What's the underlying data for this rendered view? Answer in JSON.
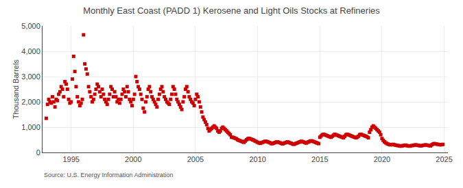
{
  "chart_data": {
    "type": "scatter",
    "title": "Monthly East Coast (PADD 1) Kerosene and Light Oils Stocks at Refineries",
    "ylabel": "Thousand Barrels",
    "source": "Source: U.S. Energy Information Administration",
    "color": "#cc0000",
    "marker": "square",
    "grid": true,
    "xlim": [
      1992.7,
      2025.3
    ],
    "xticks": [
      1995,
      2000,
      2005,
      2010,
      2015,
      2020,
      2025
    ],
    "ylim": [
      0,
      5000
    ],
    "yticks": [
      0,
      {
        "value": 1000,
        "label": "1,000"
      },
      {
        "value": 2000,
        "label": "2,000"
      },
      {
        "value": 3000,
        "label": "3,000"
      },
      {
        "value": 4000,
        "label": "4,000"
      },
      {
        "value": 5000,
        "label": "5,000"
      }
    ],
    "x": [
      1993.0,
      1993.1,
      1993.2,
      1993.3,
      1993.4,
      1993.5,
      1993.6,
      1993.7,
      1993.8,
      1993.9,
      1994.0,
      1994.1,
      1994.2,
      1994.3,
      1994.4,
      1994.5,
      1994.6,
      1994.7,
      1994.8,
      1994.9,
      1995.0,
      1995.1,
      1995.2,
      1995.3,
      1995.4,
      1995.5,
      1995.6,
      1995.7,
      1995.8,
      1995.9,
      1996.0,
      1996.1,
      1996.2,
      1996.3,
      1996.4,
      1996.5,
      1996.6,
      1996.7,
      1996.8,
      1996.9,
      1997.0,
      1997.1,
      1997.2,
      1997.3,
      1997.4,
      1997.5,
      1997.6,
      1997.7,
      1997.8,
      1997.9,
      1998.0,
      1998.1,
      1998.2,
      1998.3,
      1998.4,
      1998.5,
      1998.6,
      1998.7,
      1998.8,
      1998.9,
      1999.0,
      1999.1,
      1999.2,
      1999.3,
      1999.4,
      1999.5,
      1999.6,
      1999.7,
      1999.8,
      1999.9,
      2000.0,
      2000.1,
      2000.2,
      2000.3,
      2000.4,
      2000.5,
      2000.6,
      2000.7,
      2000.8,
      2000.9,
      2001.0,
      2001.1,
      2001.2,
      2001.3,
      2001.4,
      2001.5,
      2001.6,
      2001.7,
      2001.8,
      2001.9,
      2002.0,
      2002.1,
      2002.2,
      2002.3,
      2002.4,
      2002.5,
      2002.6,
      2002.7,
      2002.8,
      2002.9,
      2003.0,
      2003.1,
      2003.2,
      2003.3,
      2003.4,
      2003.5,
      2003.6,
      2003.7,
      2003.8,
      2003.9,
      2004.0,
      2004.1,
      2004.2,
      2004.3,
      2004.4,
      2004.5,
      2004.6,
      2004.7,
      2004.8,
      2004.9,
      2005.0,
      2005.1,
      2005.2,
      2005.3,
      2005.4,
      2005.5,
      2005.6,
      2005.7,
      2005.8,
      2005.9,
      2006.0,
      2006.1,
      2006.2,
      2006.3,
      2006.4,
      2006.5,
      2006.6,
      2006.7,
      2006.8,
      2006.9,
      2007.0,
      2007.1,
      2007.2,
      2007.3,
      2007.4,
      2007.5,
      2007.6,
      2007.7,
      2007.8,
      2007.9,
      2008.0,
      2008.1,
      2008.2,
      2008.3,
      2008.4,
      2008.5,
      2008.6,
      2008.7,
      2008.8,
      2008.9,
      2009.0,
      2009.1,
      2009.2,
      2009.3,
      2009.4,
      2009.5,
      2009.6,
      2009.7,
      2009.8,
      2009.9,
      2010.0,
      2010.1,
      2010.2,
      2010.3,
      2010.4,
      2010.5,
      2010.6,
      2010.7,
      2010.8,
      2010.9,
      2011.0,
      2011.1,
      2011.2,
      2011.3,
      2011.4,
      2011.5,
      2011.6,
      2011.7,
      2011.8,
      2011.9,
      2012.0,
      2012.1,
      2012.2,
      2012.3,
      2012.4,
      2012.5,
      2012.6,
      2012.7,
      2012.8,
      2012.9,
      2013.0,
      2013.1,
      2013.2,
      2013.3,
      2013.4,
      2013.5,
      2013.6,
      2013.7,
      2013.8,
      2013.9,
      2014.0,
      2014.1,
      2014.2,
      2014.3,
      2014.4,
      2014.5,
      2014.6,
      2014.7,
      2014.8,
      2014.9,
      2015.0,
      2015.1,
      2015.2,
      2015.3,
      2015.4,
      2015.5,
      2015.6,
      2015.7,
      2015.8,
      2015.9,
      2016.0,
      2016.1,
      2016.2,
      2016.3,
      2016.4,
      2016.5,
      2016.6,
      2016.7,
      2016.8,
      2016.9,
      2017.0,
      2017.1,
      2017.2,
      2017.3,
      2017.4,
      2017.5,
      2017.6,
      2017.7,
      2017.8,
      2017.9,
      2018.0,
      2018.1,
      2018.2,
      2018.3,
      2018.4,
      2018.5,
      2018.6,
      2018.7,
      2018.8,
      2018.9,
      2019.0,
      2019.1,
      2019.2,
      2019.3,
      2019.4,
      2019.5,
      2019.6,
      2019.7,
      2019.8,
      2019.9,
      2020.0,
      2020.1,
      2020.2,
      2020.3,
      2020.4,
      2020.5,
      2020.6,
      2020.7,
      2020.8,
      2020.9,
      2021.0,
      2021.1,
      2021.2,
      2021.3,
      2021.4,
      2021.5,
      2021.6,
      2021.7,
      2021.8,
      2021.9,
      2022.0,
      2022.1,
      2022.2,
      2022.3,
      2022.4,
      2022.5,
      2022.6,
      2022.7,
      2022.8,
      2022.9,
      2023.0,
      2023.1,
      2023.2,
      2023.3,
      2023.4,
      2023.5,
      2023.6,
      2023.7,
      2023.8,
      2023.9,
      2024.0,
      2024.1,
      2024.2,
      2024.3,
      2024.4,
      2024.5,
      2024.6,
      2024.7,
      2024.8,
      2024.9
    ],
    "values": [
      1350,
      1900,
      2100,
      2000,
      1950,
      2200,
      2000,
      1800,
      2100,
      2050,
      2300,
      2400,
      2600,
      2500,
      2200,
      2800,
      2700,
      2500,
      2100,
      1950,
      2000,
      2900,
      3800,
      3200,
      2600,
      2200,
      2000,
      1850,
      1950,
      2100,
      4650,
      3500,
      3300,
      3100,
      2600,
      2400,
      2200,
      2000,
      2100,
      2300,
      2500,
      2700,
      2600,
      2400,
      2200,
      2500,
      2300,
      2100,
      2000,
      1900,
      2100,
      2300,
      2600,
      2500,
      2200,
      2400,
      2200,
      2000,
      2100,
      1950,
      2100,
      2300,
      2500,
      2400,
      2200,
      2600,
      2400,
      2100,
      2000,
      1850,
      2100,
      2300,
      3000,
      2800,
      2600,
      2500,
      2300,
      2100,
      1750,
      1600,
      2000,
      2200,
      2500,
      2600,
      2400,
      2200,
      2100,
      2000,
      1900,
      1800,
      2100,
      2300,
      2500,
      2600,
      2400,
      2200,
      2100,
      2000,
      1950,
      1900,
      2100,
      2300,
      2600,
      2500,
      2300,
      2100,
      2000,
      1900,
      1800,
      1700,
      2000,
      2200,
      2500,
      2600,
      2400,
      2200,
      2100,
      2000,
      1950,
      1850,
      2100,
      2300,
      2200,
      2000,
      1800,
      1600,
      1400,
      1300,
      1200,
      1100,
      950,
      850,
      900,
      950,
      1000,
      1050,
      1000,
      950,
      850,
      800,
      850,
      950,
      1000,
      950,
      900,
      850,
      800,
      750,
      700,
      600,
      600,
      580,
      560,
      540,
      500,
      480,
      460,
      440,
      420,
      400,
      450,
      500,
      540,
      560,
      540,
      520,
      500,
      480,
      450,
      430,
      400,
      380,
      360,
      380,
      400,
      420,
      440,
      440,
      420,
      400,
      380,
      350,
      350,
      370,
      390,
      410,
      420,
      400,
      380,
      360,
      340,
      360,
      380,
      400,
      420,
      400,
      380,
      360,
      340,
      320,
      340,
      360,
      380,
      400,
      420,
      440,
      430,
      410,
      390,
      370,
      400,
      420,
      440,
      460,
      450,
      430,
      410,
      390,
      370,
      350,
      600,
      650,
      700,
      720,
      700,
      680,
      660,
      640,
      620,
      600,
      640,
      680,
      720,
      700,
      680,
      660,
      640,
      620,
      600,
      580,
      640,
      700,
      720,
      700,
      680,
      660,
      640,
      620,
      600,
      580,
      600,
      640,
      700,
      720,
      700,
      680,
      660,
      640,
      620,
      580,
      800,
      900,
      1000,
      1050,
      1000,
      950,
      900,
      850,
      800,
      700,
      550,
      480,
      420,
      380,
      350,
      330,
      310,
      300,
      310,
      320,
      300,
      290,
      280,
      270,
      260,
      250,
      260,
      270,
      280,
      290,
      270,
      260,
      250,
      260,
      270,
      280,
      290,
      300,
      290,
      280,
      270,
      260,
      270,
      280,
      290,
      300,
      290,
      280,
      270,
      260,
      300,
      330,
      350,
      340,
      330,
      320,
      310,
      300,
      310,
      320
    ]
  }
}
